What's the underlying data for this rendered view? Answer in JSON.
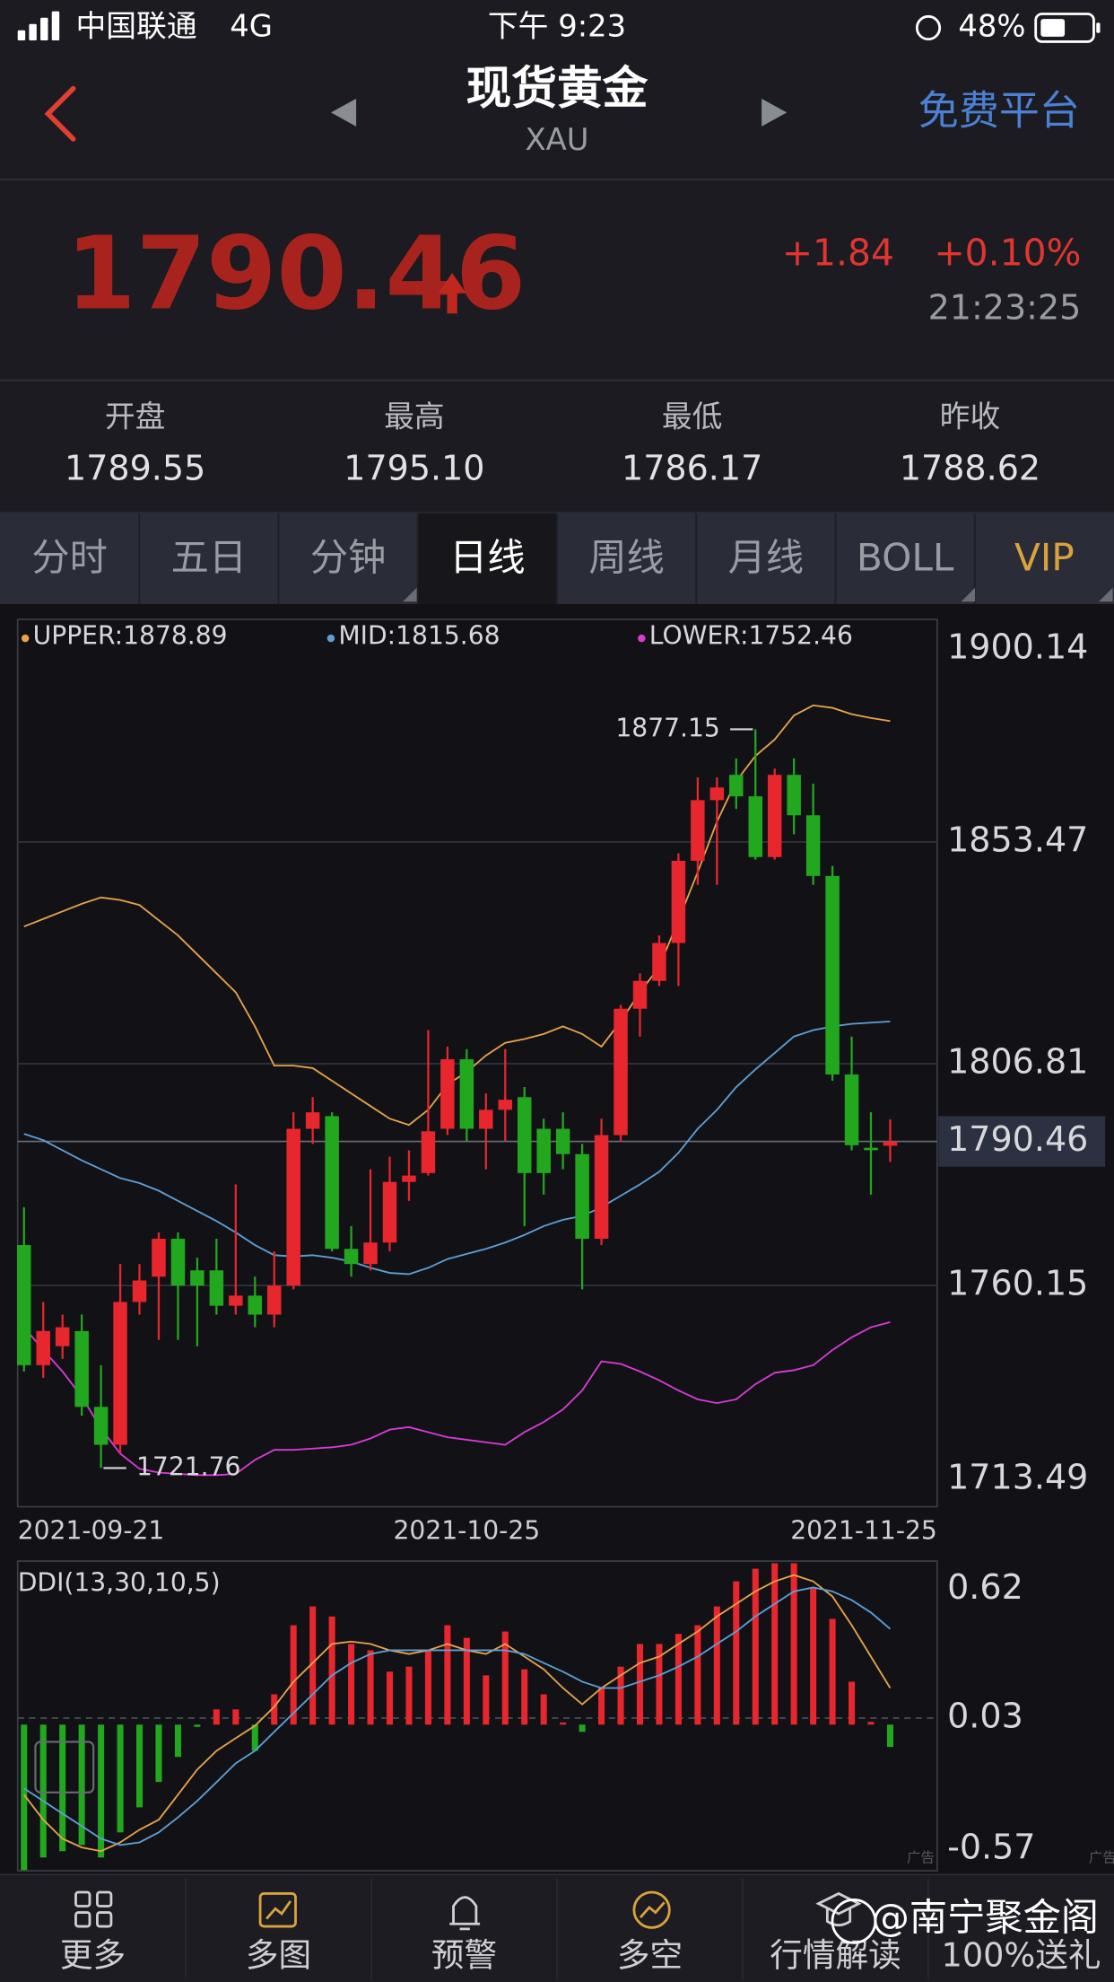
{
  "status_bar": {
    "carrier": "中国联通",
    "network": "4G",
    "time": "下午 9:23",
    "battery": "48%"
  },
  "header": {
    "title": "现货黄金",
    "symbol": "XAU",
    "link": "免费平台"
  },
  "quote": {
    "price": "1790.46",
    "change": "+1.84",
    "change_percent": "+0.10%",
    "time": "21:23:25"
  },
  "stats": [
    {
      "label": "开盘",
      "value": "1789.55"
    },
    {
      "label": "最高",
      "value": "1795.10"
    },
    {
      "label": "最低",
      "value": "1786.17"
    },
    {
      "label": "昨收",
      "value": "1788.62"
    }
  ],
  "tabs": [
    "分时",
    "五日",
    "分钟",
    "日线",
    "周线",
    "月线",
    "BOLL",
    "VIP"
  ],
  "active_tab": 3,
  "highlight_tab": 7,
  "chart_data": [
    {
      "type": "candlestick",
      "categories": [
        "2021-09-21",
        null,
        null,
        null,
        null,
        null,
        null,
        null,
        null,
        null,
        null,
        null,
        null,
        null,
        null,
        null,
        null,
        null,
        null,
        null,
        null,
        null,
        null,
        "2021-10-25",
        null,
        null,
        null,
        null,
        null,
        null,
        null,
        null,
        null,
        null,
        null,
        null,
        null,
        null,
        null,
        null,
        null,
        null,
        null,
        null,
        null,
        "2021-11-25"
      ],
      "open": [
        1768.66,
        1743.4,
        1747.39,
        1750.58,
        1734.63,
        1726.65,
        1756.69,
        1762.01,
        1769.99,
        1763.34,
        1763.34,
        1755.9,
        1758.02,
        1754.03,
        1760.15,
        1793.12,
        1795.78,
        1767.86,
        1764.67,
        1769.19,
        1781.95,
        1783.81,
        1793.12,
        1807.74,
        1793.12,
        1797.11,
        1799.77,
        1793.12,
        1793.12,
        1787.8,
        1769.99,
        1791.79,
        1818.38,
        1824.23,
        1832.2,
        1849.49,
        1862.25,
        1867.57,
        1863.05,
        1850.28,
        1867.57,
        1859.06,
        1846.3,
        1804.55,
        1789.13,
        1789.55
      ],
      "high": [
        1776.63,
        1756.69,
        1754.03,
        1754.03,
        1743.4,
        1764.67,
        1764.67,
        1771.32,
        1771.32,
        1766.0,
        1769.99,
        1781.42,
        1762.01,
        1767.33,
        1796.58,
        1799.77,
        1796.58,
        1772.65,
        1784.61,
        1787.27,
        1788.6,
        1813.86,
        1810.4,
        1809.87,
        1800.56,
        1809.87,
        1801.89,
        1795.25,
        1796.58,
        1789.93,
        1795.25,
        1819.18,
        1825.82,
        1833.8,
        1851.08,
        1867.03,
        1867.03,
        1871.02,
        1877.15,
        1868.89,
        1871.02,
        1865.7,
        1848.42,
        1812.53,
        1796.58,
        1795.1
      ],
      "low": [
        1742.07,
        1740.74,
        1744.73,
        1732.76,
        1721.76,
        1724.79,
        1754.03,
        1748.72,
        1748.72,
        1747.39,
        1754.03,
        1754.03,
        1751.38,
        1751.38,
        1759.35,
        1789.93,
        1767.33,
        1762.01,
        1763.34,
        1767.33,
        1777.96,
        1783.28,
        1791.79,
        1790.46,
        1784.61,
        1790.46,
        1772.65,
        1779.29,
        1784.61,
        1759.35,
        1768.66,
        1790.46,
        1812.53,
        1823.16,
        1823.16,
        1844.43,
        1844.43,
        1860.39,
        1849.75,
        1849.75,
        1855.07,
        1844.43,
        1803.22,
        1788.6,
        1779.29,
        1786.17
      ],
      "close": [
        1743.4,
        1750.58,
        1751.38,
        1734.63,
        1726.65,
        1756.69,
        1761.21,
        1769.99,
        1760.15,
        1760.15,
        1755.9,
        1758.02,
        1754.03,
        1760.15,
        1793.12,
        1796.58,
        1767.86,
        1764.67,
        1769.19,
        1781.95,
        1783.28,
        1792.59,
        1807.74,
        1793.12,
        1797.11,
        1799.23,
        1783.81,
        1783.81,
        1787.8,
        1769.99,
        1791.79,
        1818.38,
        1824.23,
        1832.2,
        1849.49,
        1862.25,
        1864.91,
        1863.05,
        1850.28,
        1867.57,
        1859.06,
        1846.3,
        1804.55,
        1789.66,
        1788.62,
        1790.46
      ],
      "up_color": "#e8262d",
      "down_color": "#22a81e",
      "series": [
        {
          "name": "UPPER:1878.89",
          "color": "#e8a34a",
          "values": [
            1835.66,
            1837.26,
            1838.85,
            1840.45,
            1841.78,
            1841.24,
            1840.18,
            1836.99,
            1833.8,
            1829.81,
            1825.82,
            1821.83,
            1814.66,
            1806.41,
            1806.41,
            1805.88,
            1803.22,
            1800.56,
            1797.9,
            1795.25,
            1793.92,
            1797.11,
            1802.43,
            1805.08,
            1808.54,
            1811.2,
            1812.0,
            1813.06,
            1814.66,
            1813.06,
            1810.4,
            1815.72,
            1821.83,
            1827.15,
            1836.99,
            1847.09,
            1857.73,
            1866.24,
            1871.55,
            1875.01,
            1880.06,
            1882.19,
            1881.66,
            1880.33,
            1879.53,
            1878.89
          ]
        },
        {
          "name": "MID:1815.68",
          "color": "#5d9fd8",
          "values": [
            1792.06,
            1790.73,
            1788.6,
            1786.47,
            1784.61,
            1782.75,
            1781.69,
            1780.09,
            1777.96,
            1775.84,
            1773.71,
            1771.32,
            1768.66,
            1766.53,
            1766.27,
            1766.53,
            1766.0,
            1765.2,
            1763.87,
            1762.81,
            1762.54,
            1763.87,
            1765.73,
            1766.8,
            1767.86,
            1769.19,
            1770.79,
            1772.65,
            1773.98,
            1774.77,
            1776.63,
            1779.03,
            1781.42,
            1784.08,
            1788.07,
            1793.12,
            1797.11,
            1801.89,
            1805.62,
            1809.07,
            1812.53,
            1813.86,
            1814.66,
            1815.19,
            1815.45,
            1815.68
          ]
        },
        {
          "name": "LOWER:1752.46",
          "color": "#d93ad8",
          "values": [
            1751.38,
            1746.59,
            1742.07,
            1736.75,
            1730.11,
            1724.79,
            1721.6,
            1720.8,
            1720.53,
            1720.27,
            1720.27,
            1720.53,
            1723.46,
            1725.59,
            1725.59,
            1725.85,
            1726.12,
            1726.65,
            1727.98,
            1729.84,
            1730.37,
            1729.31,
            1728.24,
            1727.71,
            1727.18,
            1726.65,
            1729.31,
            1731.43,
            1734.09,
            1738.08,
            1744.2,
            1743.67,
            1742.07,
            1740.21,
            1738.08,
            1736.22,
            1735.42,
            1736.22,
            1739.41,
            1741.8,
            1742.34,
            1743.4,
            1746.59,
            1749.25,
            1751.38,
            1752.46
          ]
        }
      ],
      "ylim": [
        1713.49,
        1900.14
      ],
      "yticks": [
        1900.14,
        1853.47,
        1806.81,
        1760.15,
        1713.49
      ],
      "grid": true,
      "max_label": "1877.15",
      "min_label": "1721.76"
    },
    {
      "type": "bar",
      "title": "DDI(13,30,10,5)",
      "values": [
        -0.667,
        -0.609,
        -0.58,
        -0.552,
        -0.609,
        -0.494,
        -0.379,
        -0.263,
        -0.148,
        -0.01,
        0.07,
        0.07,
        -0.12,
        0.139,
        0.456,
        0.542,
        0.496,
        0.37,
        0.341,
        0.243,
        0.266,
        0.341,
        0.456,
        0.398,
        0.226,
        0.427,
        0.254,
        0.139,
        0.01,
        -0.033,
        0.168,
        0.266,
        0.37,
        0.37,
        0.416,
        0.456,
        0.542,
        0.657,
        0.715,
        0.74,
        0.74,
        0.628,
        0.485,
        0.197,
        0.013,
        -0.102
      ],
      "positive_color": "#e8262d",
      "negative_color": "#22a81e",
      "series": [
        {
          "color": "#e8a34a",
          "values": [
            -0.321,
            -0.436,
            -0.523,
            -0.563,
            -0.58,
            -0.54,
            -0.482,
            -0.436,
            -0.321,
            -0.206,
            -0.12,
            -0.062,
            -0.005,
            0.082,
            0.197,
            0.283,
            0.37,
            0.381,
            0.37,
            0.341,
            0.324,
            0.341,
            0.37,
            0.341,
            0.324,
            0.37,
            0.312,
            0.254,
            0.168,
            0.093,
            0.168,
            0.226,
            0.283,
            0.312,
            0.37,
            0.427,
            0.496,
            0.554,
            0.611,
            0.657,
            0.686,
            0.657,
            0.588,
            0.456,
            0.312,
            0.168
          ]
        },
        {
          "color": "#5d9fd8",
          "values": [
            -0.292,
            -0.35,
            -0.408,
            -0.465,
            -0.523,
            -0.552,
            -0.54,
            -0.494,
            -0.425,
            -0.35,
            -0.264,
            -0.177,
            -0.12,
            -0.033,
            0.053,
            0.139,
            0.226,
            0.283,
            0.324,
            0.341,
            0.341,
            0.341,
            0.341,
            0.341,
            0.341,
            0.341,
            0.324,
            0.283,
            0.243,
            0.197,
            0.168,
            0.168,
            0.197,
            0.226,
            0.266,
            0.312,
            0.37,
            0.427,
            0.496,
            0.554,
            0.611,
            0.629,
            0.611,
            0.571,
            0.514,
            0.439
          ]
        }
      ],
      "ylim": [
        -0.67,
        0.75
      ],
      "yticks": [
        0.62,
        0.03,
        -0.57
      ],
      "grid": true
    }
  ],
  "nav": [
    "更多",
    "多图",
    "预警",
    "多空",
    "行情解读",
    "100%送礼"
  ],
  "ad_labels": [
    "广告",
    "广告"
  ],
  "watermark": "@南宁聚金阁"
}
